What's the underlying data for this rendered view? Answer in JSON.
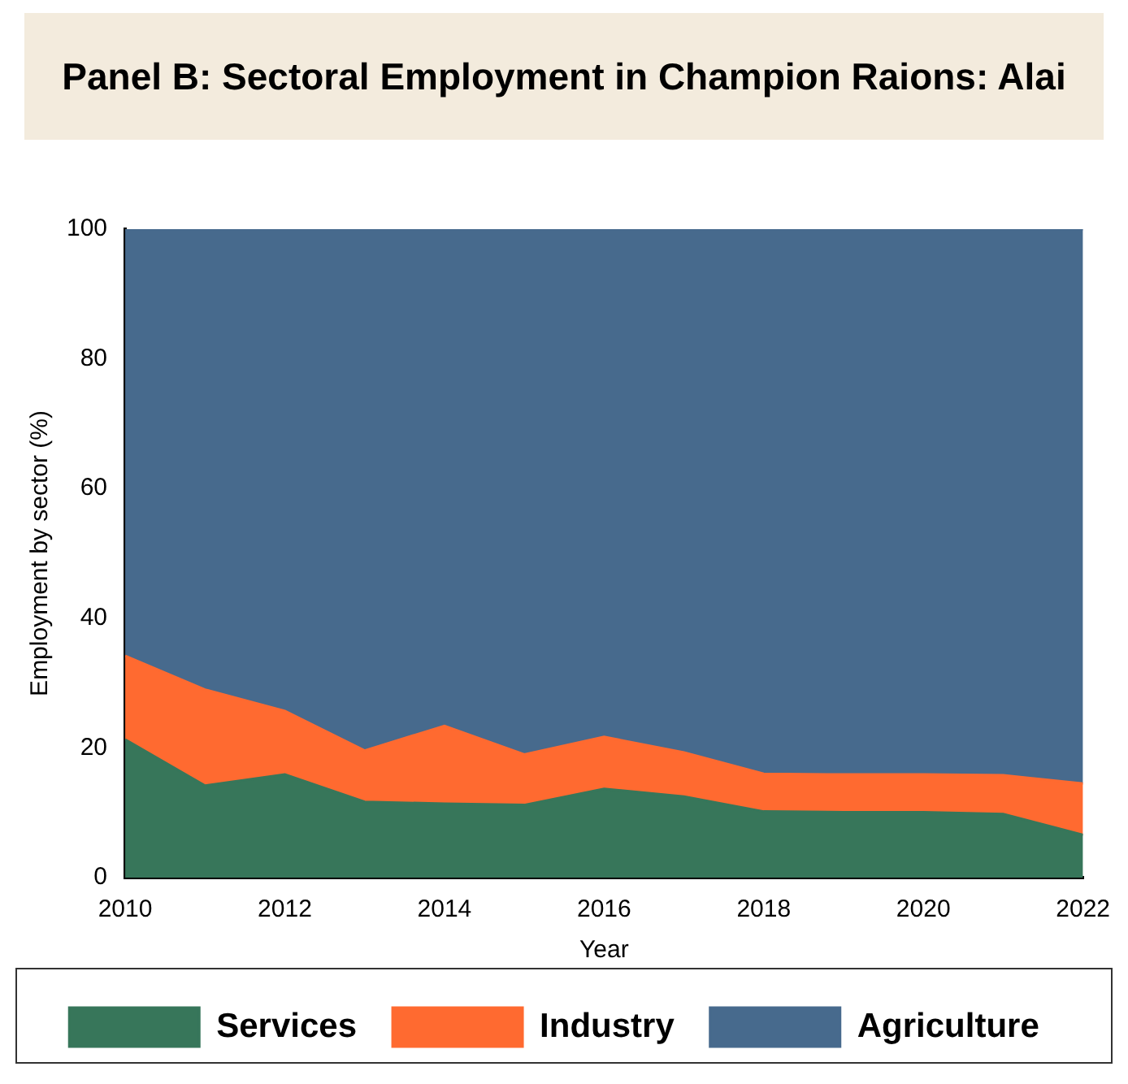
{
  "chart_data": {
    "type": "area",
    "title": "Panel B: Sectoral Employment in Champion Raions: Alai",
    "xlabel": "Year",
    "ylabel": "Employment by sector (%)",
    "stacked": true,
    "x": [
      2010,
      2011,
      2012,
      2013,
      2014,
      2015,
      2016,
      2017,
      2018,
      2019,
      2020,
      2021,
      2022
    ],
    "series": [
      {
        "name": "Services",
        "color": "#37765a",
        "values": [
          21.3,
          14.2,
          15.9,
          11.7,
          11.4,
          11.2,
          13.7,
          12.5,
          10.2,
          10.1,
          10.1,
          9.8,
          6.6
        ]
      },
      {
        "name": "Industry",
        "color": "#ff6a30",
        "values": [
          12.9,
          14.8,
          9.8,
          7.9,
          12,
          7.8,
          8,
          6.8,
          5.8,
          5.8,
          5.8,
          6,
          7.9
        ]
      },
      {
        "name": "Agriculture",
        "color": "#476a8d",
        "values": [
          65.8,
          71,
          74.3,
          80.4,
          76.6,
          81,
          78.3,
          80.7,
          84,
          84.1,
          84.1,
          84.2,
          85.5
        ]
      }
    ],
    "xlim": [
      2010,
      2022
    ],
    "xticks": [
      2010,
      2012,
      2014,
      2016,
      2018,
      2020,
      2022
    ],
    "ylim": [
      0,
      100
    ],
    "yticks": [
      0,
      20,
      40,
      60,
      80,
      100
    ],
    "grid": false,
    "legend": "bottom"
  }
}
